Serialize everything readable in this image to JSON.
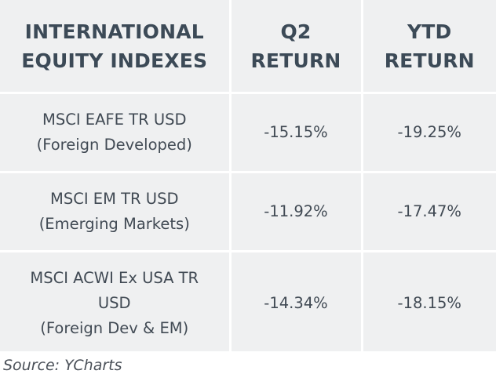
{
  "table": {
    "headers": [
      {
        "line1": "INTERNATIONAL",
        "line2": "EQUITY INDEXES"
      },
      {
        "line1": "Q2",
        "line2": "RETURN"
      },
      {
        "line1": "YTD",
        "line2": "RETURN"
      }
    ],
    "rows": [
      {
        "index_lines": [
          "MSCI EAFE TR USD",
          "(Foreign Developed)"
        ],
        "q2_return": "-15.15%",
        "ytd_return": "-19.25%"
      },
      {
        "index_lines": [
          "MSCI EM TR USD",
          "(Emerging Markets)"
        ],
        "q2_return": "-11.92%",
        "ytd_return": "-17.47%"
      },
      {
        "index_lines": [
          "MSCI ACWI Ex USA TR",
          "USD",
          "(Foreign Dev & EM)"
        ],
        "q2_return": "-14.34%",
        "ytd_return": "-18.15%"
      }
    ]
  },
  "source": "Source: YCharts",
  "colors": {
    "cell_background": "#eff0f1",
    "header_text": "#3c4a57",
    "body_text": "#414a54",
    "divider": "#ffffff"
  }
}
